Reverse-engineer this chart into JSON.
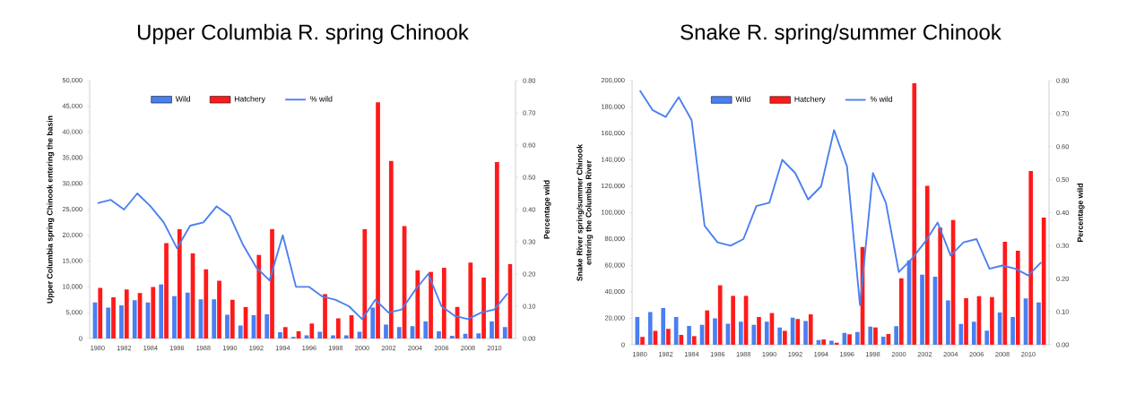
{
  "chart_data": [
    {
      "type": "bar",
      "title": "Upper Columbia R. spring Chinook",
      "ylabel": "Upper Columbia spring Chinook entering the basin",
      "y2label": "Percentage wild",
      "legend": "top",
      "categories": [
        "1980",
        null,
        "1982",
        null,
        "1984",
        null,
        "1986",
        null,
        "1988",
        null,
        "1990",
        null,
        "1992",
        null,
        "1994",
        null,
        "1996",
        null,
        "1998",
        null,
        "2000",
        null,
        "2002",
        null,
        "2004",
        null,
        "2006",
        null,
        "2008",
        null,
        "2010",
        null
      ],
      "series": [
        {
          "name": "Wild",
          "color": "#4a7ff0",
          "values": [
            7000,
            6000,
            6400,
            7400,
            7000,
            10500,
            8200,
            8900,
            7600,
            7600,
            4600,
            2500,
            4500,
            4700,
            1200,
            300,
            600,
            1300,
            600,
            600,
            1300,
            6000,
            2700,
            2200,
            2400,
            3300,
            1400,
            500,
            900,
            1000,
            3300,
            2200
          ]
        },
        {
          "name": "Hatchery",
          "color": "#ff1a1a",
          "values": [
            9800,
            8000,
            9500,
            8800,
            10000,
            18500,
            21200,
            16500,
            13400,
            11200,
            7500,
            6100,
            16200,
            21200,
            2200,
            1400,
            2900,
            8600,
            3900,
            4500,
            21200,
            45800,
            34400,
            21800,
            13200,
            12900,
            13700,
            6100,
            14700,
            11800,
            34200,
            14400
          ]
        },
        {
          "name": "% wild",
          "type": "line",
          "axis": "y2",
          "color": "#4a7ff0",
          "values": [
            0.42,
            0.43,
            0.4,
            0.45,
            0.41,
            0.36,
            0.28,
            0.35,
            0.36,
            0.41,
            0.38,
            0.29,
            0.22,
            0.18,
            0.32,
            0.16,
            0.16,
            0.13,
            0.12,
            0.1,
            0.06,
            0.12,
            0.08,
            0.09,
            0.15,
            0.2,
            0.1,
            0.07,
            0.06,
            0.08,
            0.09,
            0.14
          ]
        }
      ],
      "ylim": [
        0,
        50000
      ],
      "yticks": [
        0,
        {
          "value": 5000,
          "label": "5,000"
        },
        {
          "value": 10000,
          "label": "10,000"
        },
        {
          "value": 15000,
          "label": "15,000"
        },
        {
          "value": 20000,
          "label": "20,000"
        },
        {
          "value": 25000,
          "label": "25,000"
        },
        {
          "value": 30000,
          "label": "30,000"
        },
        {
          "value": 35000,
          "label": "35,000"
        },
        {
          "value": 40000,
          "label": "40,000"
        },
        {
          "value": 45000,
          "label": "45,000"
        },
        {
          "value": 50000,
          "label": "50,000"
        }
      ],
      "y2lim": [
        0,
        0.8
      ],
      "y2ticks": [
        {
          "value": 0,
          "label": "0.00"
        },
        {
          "value": 0.1,
          "label": "0.10"
        },
        {
          "value": 0.2,
          "label": "0.20"
        },
        {
          "value": 0.3,
          "label": "0.30"
        },
        {
          "value": 0.4,
          "label": "0.40"
        },
        {
          "value": 0.5,
          "label": "0.50"
        },
        {
          "value": 0.6,
          "label": "0.60"
        },
        {
          "value": 0.7,
          "label": "0.70"
        },
        {
          "value": 0.8,
          "label": "0.80"
        }
      ]
    },
    {
      "type": "bar",
      "title": "Snake R. spring/summer Chinook",
      "ylabel": "Snake River spring/summer Chinook entering the Columbia River",
      "y2label": "Percentage wild",
      "legend": "top",
      "categories": [
        "1980",
        null,
        "1982",
        null,
        "1984",
        null,
        "1986",
        null,
        "1988",
        null,
        "1990",
        null,
        "1992",
        null,
        "1994",
        null,
        "1996",
        null,
        "1998",
        null,
        "2000",
        null,
        "2002",
        null,
        "2004",
        null,
        "2006",
        null,
        "2008",
        null,
        "2010",
        null
      ],
      "series": [
        {
          "name": "Wild",
          "color": "#4a7ff0",
          "values": [
            21000,
            24800,
            27800,
            21000,
            14200,
            15000,
            20000,
            16000,
            17500,
            15000,
            17500,
            13000,
            20500,
            18000,
            3500,
            3000,
            9000,
            9700,
            13800,
            6100,
            14000,
            63900,
            53000,
            51500,
            33600,
            15800,
            17400,
            10600,
            24400,
            21000,
            35000,
            32000
          ]
        },
        {
          "name": "Hatchery",
          "color": "#ff1a1a",
          "values": [
            6000,
            10500,
            12000,
            7500,
            6500,
            26000,
            45000,
            37000,
            37000,
            21000,
            24000,
            10500,
            19500,
            23000,
            4000,
            1500,
            7900,
            74000,
            13100,
            8100,
            50300,
            198000,
            120300,
            88700,
            94400,
            35200,
            36800,
            36100,
            77900,
            71100,
            131600,
            96200
          ]
        },
        {
          "name": "% wild",
          "type": "line",
          "axis": "y2",
          "color": "#4a7ff0",
          "values": [
            0.77,
            0.71,
            0.69,
            0.75,
            0.68,
            0.36,
            0.31,
            0.3,
            0.32,
            0.42,
            0.43,
            0.56,
            0.52,
            0.44,
            0.48,
            0.65,
            0.54,
            0.12,
            0.52,
            0.43,
            0.22,
            0.26,
            0.31,
            0.37,
            0.27,
            0.31,
            0.32,
            0.23,
            0.24,
            0.23,
            0.21,
            0.25
          ]
        }
      ],
      "ylim": [
        0,
        200000
      ],
      "yticks": [
        0,
        {
          "value": 20000,
          "label": "20,000"
        },
        {
          "value": 40000,
          "label": "40,000"
        },
        {
          "value": 60000,
          "label": "60,000"
        },
        {
          "value": 80000,
          "label": "80,000"
        },
        {
          "value": 100000,
          "label": "100,000"
        },
        {
          "value": 120000,
          "label": "120,000"
        },
        {
          "value": 140000,
          "label": "140,000"
        },
        {
          "value": 160000,
          "label": "160,000"
        },
        {
          "value": 180000,
          "label": "180,000"
        },
        {
          "value": 200000,
          "label": "200,000"
        }
      ],
      "y2lim": [
        0,
        0.8
      ],
      "y2ticks": [
        {
          "value": 0,
          "label": "0.00"
        },
        {
          "value": 0.1,
          "label": "0.10"
        },
        {
          "value": 0.2,
          "label": "0.20"
        },
        {
          "value": 0.3,
          "label": "0.30"
        },
        {
          "value": 0.4,
          "label": "0.40"
        },
        {
          "value": 0.5,
          "label": "0.50"
        },
        {
          "value": 0.6,
          "label": "0.60"
        },
        {
          "value": 0.7,
          "label": "0.70"
        },
        {
          "value": 0.8,
          "label": "0.80"
        }
      ]
    }
  ]
}
